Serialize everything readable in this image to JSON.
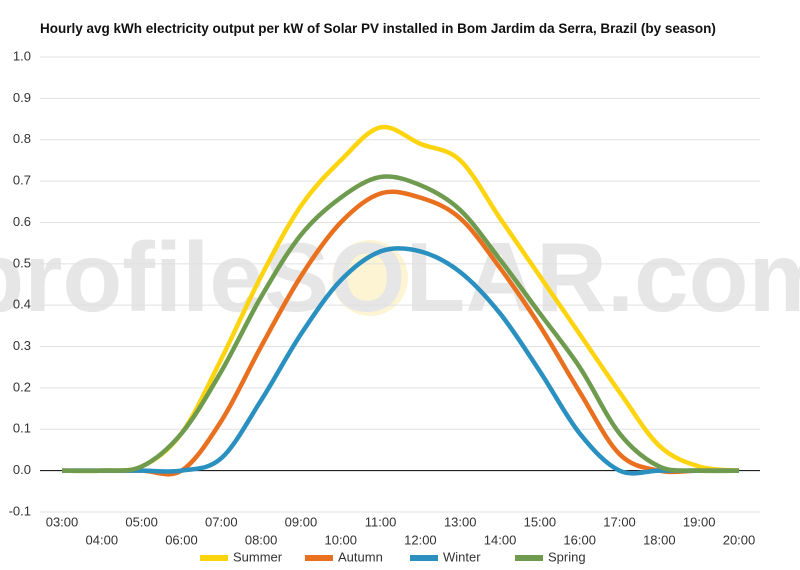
{
  "chart_data": {
    "type": "line",
    "title": "Hourly avg kWh electricity output per kW of Solar PV installed in Bom Jardim da Serra, Brazil (by season)",
    "watermark": "profileSOLAR.com",
    "categories": [
      "03:00",
      "04:00",
      "05:00",
      "06:00",
      "07:00",
      "08:00",
      "09:00",
      "10:00",
      "11:00",
      "12:00",
      "13:00",
      "14:00",
      "15:00",
      "16:00",
      "17:00",
      "18:00",
      "19:00",
      "20:00"
    ],
    "series": [
      {
        "name": "Summer",
        "color": "#fdd40e",
        "values": [
          0,
          0,
          0.01,
          0.09,
          0.27,
          0.47,
          0.64,
          0.75,
          0.83,
          0.79,
          0.75,
          0.61,
          0.47,
          0.33,
          0.19,
          0.06,
          0.01,
          0
        ]
      },
      {
        "name": "Autumn",
        "color": "#e8701f",
        "values": [
          0,
          0,
          0,
          0,
          0.12,
          0.3,
          0.47,
          0.6,
          0.67,
          0.66,
          0.61,
          0.49,
          0.35,
          0.19,
          0.04,
          0,
          0,
          0
        ]
      },
      {
        "name": "Winter",
        "color": "#2a90bf",
        "values": [
          0,
          0,
          0,
          0,
          0.03,
          0.17,
          0.33,
          0.46,
          0.53,
          0.53,
          0.48,
          0.38,
          0.24,
          0.09,
          0,
          0,
          0,
          0
        ]
      },
      {
        "name": "Spring",
        "color": "#6e9b4e",
        "values": [
          0,
          0,
          0.01,
          0.09,
          0.24,
          0.42,
          0.57,
          0.66,
          0.71,
          0.69,
          0.63,
          0.51,
          0.38,
          0.25,
          0.09,
          0.01,
          0,
          0
        ]
      }
    ],
    "ylim": [
      -0.1,
      1.0
    ],
    "yticks": [
      -0.1,
      {
        "value": 0,
        "label": "0.0"
      },
      0.1,
      0.2,
      0.3,
      0.4,
      0.5,
      0.6,
      0.7,
      0.8,
      0.9,
      {
        "value": 1,
        "label": "1.0"
      }
    ],
    "grid": true
  }
}
